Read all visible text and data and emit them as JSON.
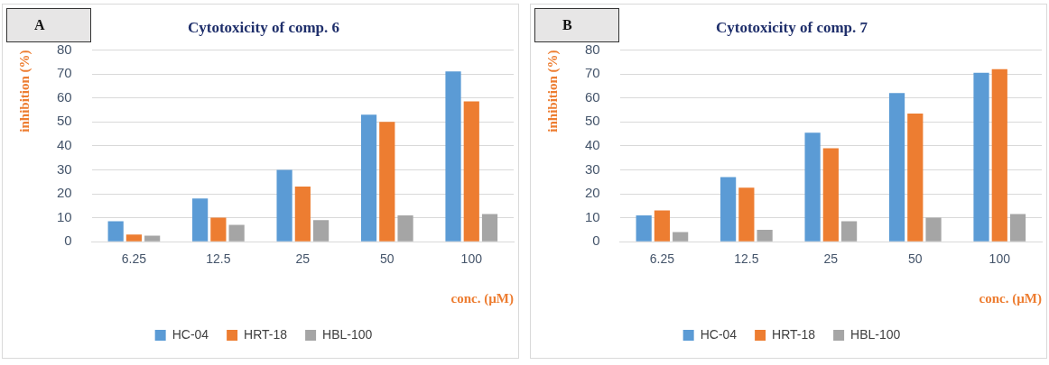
{
  "chart_data": [
    {
      "type": "bar",
      "title": "Cytotoxicity of comp. 6",
      "xlabel": "conc. (µM)",
      "ylabel": "inhibition (%)",
      "annotations": [
        "A"
      ],
      "categories": [
        "6.25",
        "12.5",
        "25",
        "50",
        "100"
      ],
      "series": [
        {
          "name": "HC-04",
          "color": "#5b9bd5",
          "values": [
            8.5,
            18,
            30,
            53,
            71
          ]
        },
        {
          "name": "HRT-18",
          "color": "#ed7d31",
          "values": [
            3,
            10,
            23,
            50,
            58.5
          ]
        },
        {
          "name": "HBL-100",
          "color": "#a5a5a5",
          "values": [
            2.5,
            7,
            9,
            11,
            11.5
          ]
        }
      ],
      "ylim": [
        0,
        80
      ],
      "yticks": [
        0,
        10,
        20,
        30,
        40,
        50,
        60,
        70,
        80
      ],
      "grid": "y",
      "legend": "bottom"
    },
    {
      "type": "bar",
      "title": "Cytotoxicity of comp. 7",
      "xlabel": "conc. (µM)",
      "ylabel": "inhibition (%)",
      "annotations": [
        "B"
      ],
      "categories": [
        "6.25",
        "12.5",
        "25",
        "50",
        "100"
      ],
      "series": [
        {
          "name": "HC-04",
          "color": "#5b9bd5",
          "values": [
            11,
            27,
            45.5,
            62,
            70.5
          ]
        },
        {
          "name": "HRT-18",
          "color": "#ed7d31",
          "values": [
            13,
            22.5,
            39,
            53.5,
            72
          ]
        },
        {
          "name": "HBL-100",
          "color": "#a5a5a5",
          "values": [
            4,
            5,
            8.5,
            10,
            11.5
          ]
        }
      ],
      "ylim": [
        0,
        80
      ],
      "yticks": [
        0,
        10,
        20,
        30,
        40,
        50,
        60,
        70,
        80
      ],
      "grid": "y",
      "legend": "bottom"
    }
  ]
}
